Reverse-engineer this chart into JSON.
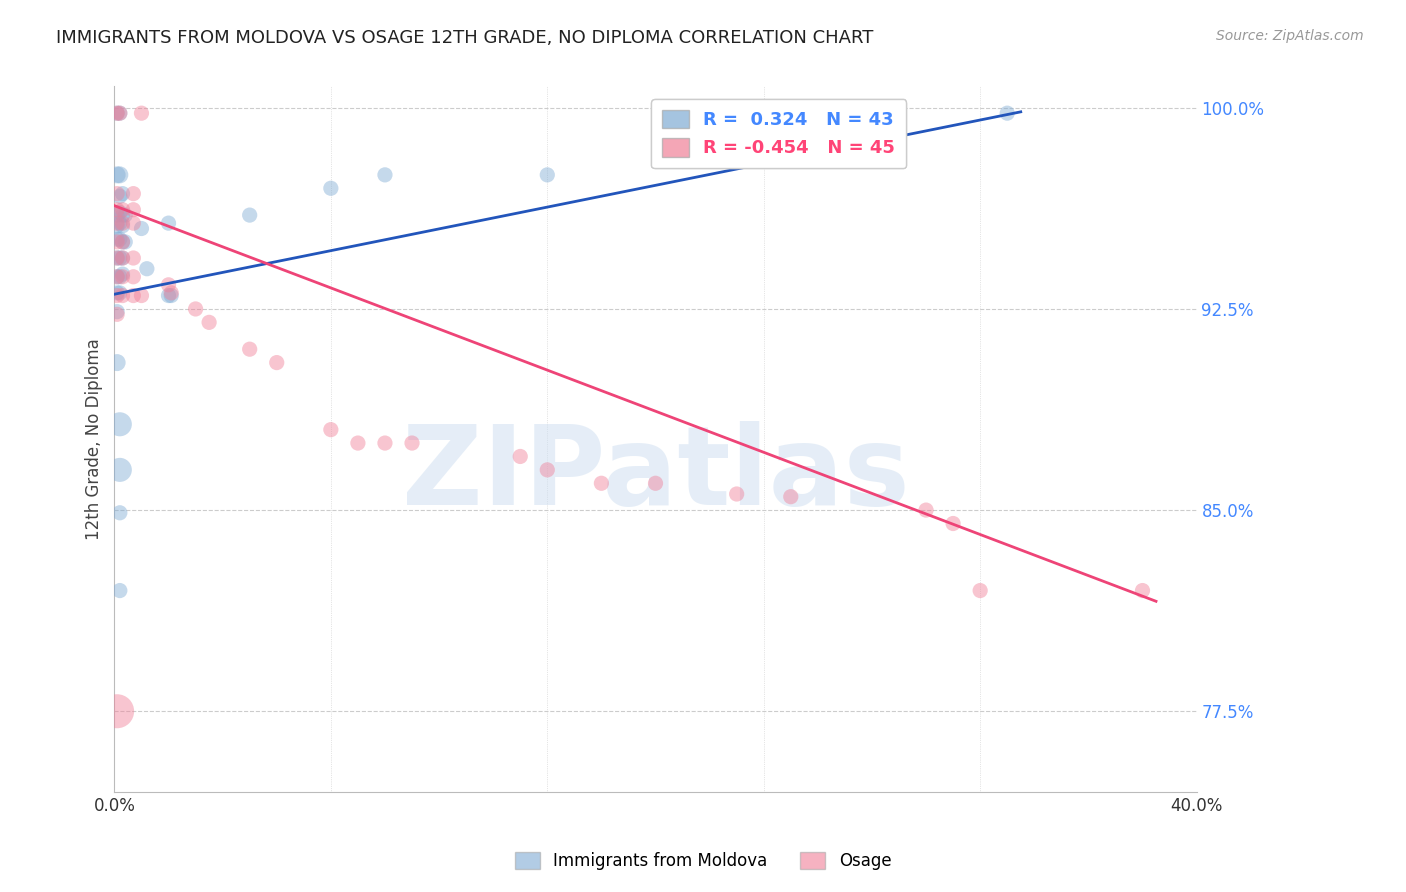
{
  "title": "IMMIGRANTS FROM MOLDOVA VS OSAGE 12TH GRADE, NO DIPLOMA CORRELATION CHART",
  "source": "Source: ZipAtlas.com",
  "ylabel": "12th Grade, No Diploma",
  "xlim": [
    0.0,
    0.4
  ],
  "ylim": [
    0.745,
    1.008
  ],
  "xticks": [
    0.0,
    0.08,
    0.16,
    0.24,
    0.32,
    0.4
  ],
  "xtick_labels": [
    "0.0%",
    "",
    "",
    "",
    "",
    "40.0%"
  ],
  "yticks": [
    0.775,
    0.85,
    0.925,
    1.0
  ],
  "ytick_labels": [
    "77.5%",
    "85.0%",
    "92.5%",
    "100.0%"
  ],
  "legend_R_entries": [
    {
      "label": "R =  0.324   N = 43",
      "color": "#7fabd4"
    },
    {
      "label": "R = -0.454   N = 45",
      "color": "#f08098"
    }
  ],
  "bottom_legend": [
    "Immigrants from Moldova",
    "Osage"
  ],
  "watermark": "ZIPatlas",
  "moldova_color": "#7fabd4",
  "osage_color": "#f08098",
  "moldova_line_x": [
    0.0,
    0.335
  ],
  "moldova_line_y": [
    0.9305,
    0.9985
  ],
  "osage_line_x": [
    0.0,
    0.385
  ],
  "osage_line_y": [
    0.9635,
    0.816
  ],
  "moldova_points": [
    [
      0.001,
      0.998
    ],
    [
      0.002,
      0.998
    ],
    [
      0.001,
      0.975
    ],
    [
      0.002,
      0.975
    ],
    [
      0.002,
      0.967
    ],
    [
      0.003,
      0.968
    ],
    [
      0.001,
      0.96
    ],
    [
      0.002,
      0.961
    ],
    [
      0.003,
      0.96
    ],
    [
      0.004,
      0.96
    ],
    [
      0.001,
      0.956
    ],
    [
      0.002,
      0.957
    ],
    [
      0.003,
      0.956
    ],
    [
      0.001,
      0.951
    ],
    [
      0.002,
      0.951
    ],
    [
      0.003,
      0.95
    ],
    [
      0.004,
      0.95
    ],
    [
      0.001,
      0.944
    ],
    [
      0.002,
      0.944
    ],
    [
      0.003,
      0.944
    ],
    [
      0.001,
      0.937
    ],
    [
      0.002,
      0.937
    ],
    [
      0.003,
      0.938
    ],
    [
      0.001,
      0.931
    ],
    [
      0.002,
      0.931
    ],
    [
      0.001,
      0.924
    ],
    [
      0.001,
      0.905
    ],
    [
      0.002,
      0.882
    ],
    [
      0.002,
      0.865
    ],
    [
      0.01,
      0.955
    ],
    [
      0.02,
      0.957
    ],
    [
      0.012,
      0.94
    ],
    [
      0.02,
      0.93
    ],
    [
      0.021,
      0.93
    ],
    [
      0.05,
      0.96
    ],
    [
      0.08,
      0.97
    ],
    [
      0.1,
      0.975
    ],
    [
      0.16,
      0.975
    ],
    [
      0.21,
      0.98
    ],
    [
      0.27,
      0.985
    ],
    [
      0.33,
      0.998
    ],
    [
      0.002,
      0.849
    ],
    [
      0.002,
      0.82
    ]
  ],
  "moldova_sizes": [
    120,
    120,
    150,
    150,
    120,
    120,
    120,
    120,
    120,
    120,
    120,
    120,
    120,
    120,
    120,
    120,
    120,
    120,
    120,
    120,
    120,
    120,
    120,
    120,
    120,
    120,
    150,
    300,
    300,
    120,
    120,
    120,
    120,
    120,
    120,
    120,
    120,
    120,
    120,
    120,
    120,
    120,
    120
  ],
  "osage_points": [
    [
      0.001,
      0.998
    ],
    [
      0.002,
      0.998
    ],
    [
      0.01,
      0.998
    ],
    [
      0.001,
      0.968
    ],
    [
      0.007,
      0.968
    ],
    [
      0.001,
      0.962
    ],
    [
      0.003,
      0.962
    ],
    [
      0.007,
      0.962
    ],
    [
      0.001,
      0.957
    ],
    [
      0.003,
      0.957
    ],
    [
      0.007,
      0.957
    ],
    [
      0.001,
      0.95
    ],
    [
      0.003,
      0.95
    ],
    [
      0.001,
      0.944
    ],
    [
      0.003,
      0.944
    ],
    [
      0.007,
      0.944
    ],
    [
      0.001,
      0.937
    ],
    [
      0.003,
      0.937
    ],
    [
      0.007,
      0.937
    ],
    [
      0.001,
      0.93
    ],
    [
      0.003,
      0.93
    ],
    [
      0.007,
      0.93
    ],
    [
      0.01,
      0.93
    ],
    [
      0.001,
      0.923
    ],
    [
      0.02,
      0.934
    ],
    [
      0.021,
      0.931
    ],
    [
      0.03,
      0.925
    ],
    [
      0.035,
      0.92
    ],
    [
      0.05,
      0.91
    ],
    [
      0.06,
      0.905
    ],
    [
      0.08,
      0.88
    ],
    [
      0.09,
      0.875
    ],
    [
      0.1,
      0.875
    ],
    [
      0.11,
      0.875
    ],
    [
      0.15,
      0.87
    ],
    [
      0.16,
      0.865
    ],
    [
      0.18,
      0.86
    ],
    [
      0.2,
      0.86
    ],
    [
      0.23,
      0.856
    ],
    [
      0.25,
      0.855
    ],
    [
      0.3,
      0.85
    ],
    [
      0.31,
      0.845
    ],
    [
      0.32,
      0.82
    ],
    [
      0.38,
      0.82
    ],
    [
      0.001,
      0.775
    ]
  ],
  "osage_sizes": [
    120,
    120,
    120,
    120,
    120,
    120,
    120,
    120,
    120,
    120,
    120,
    120,
    120,
    120,
    120,
    120,
    120,
    120,
    120,
    120,
    120,
    120,
    120,
    120,
    120,
    120,
    120,
    120,
    120,
    120,
    120,
    120,
    120,
    120,
    120,
    120,
    120,
    120,
    120,
    120,
    120,
    120,
    120,
    120,
    600
  ]
}
